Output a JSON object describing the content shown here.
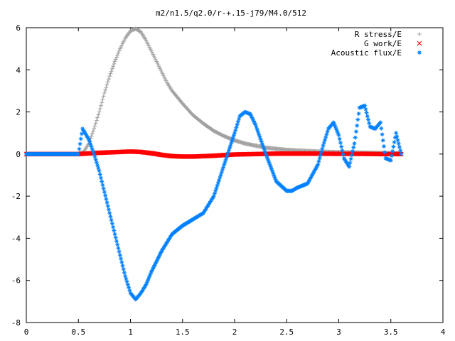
{
  "chart_data": {
    "type": "scatter",
    "title": "m2/n1.5/q2.0/r-+.15-j79/M4.0/512",
    "xlabel": "",
    "ylabel": "",
    "xlim": [
      0,
      4
    ],
    "ylim": [
      -8,
      6
    ],
    "x_ticks": [
      "0",
      "0.5",
      "1",
      "1.5",
      "2",
      "2.5",
      "3",
      "3.5",
      "4"
    ],
    "y_ticks": [
      "-8",
      "-6",
      "-4",
      "-2",
      "0",
      "2",
      "4",
      "6"
    ],
    "grid": false,
    "legend_position": "top-right",
    "series": [
      {
        "name": "R stress/E",
        "marker": "plus",
        "color": "#a0a0a0",
        "x": [
          0.0,
          0.3,
          0.5,
          0.55,
          0.6,
          0.65,
          0.7,
          0.75,
          0.8,
          0.85,
          0.9,
          0.95,
          1.0,
          1.05,
          1.1,
          1.15,
          1.2,
          1.25,
          1.3,
          1.35,
          1.4,
          1.5,
          1.6,
          1.7,
          1.8,
          1.9,
          2.0,
          2.1,
          2.2,
          2.3,
          2.4,
          2.5,
          2.6,
          2.8,
          3.0,
          3.2,
          3.4,
          3.6
        ],
        "y": [
          0.0,
          0.0,
          0.0,
          0.1,
          0.5,
          1.2,
          2.0,
          2.9,
          3.7,
          4.4,
          5.0,
          5.5,
          5.85,
          5.95,
          5.8,
          5.4,
          4.9,
          4.4,
          3.9,
          3.4,
          3.0,
          2.4,
          1.85,
          1.45,
          1.1,
          0.85,
          0.65,
          0.5,
          0.4,
          0.3,
          0.25,
          0.2,
          0.17,
          0.12,
          0.09,
          0.07,
          0.05,
          0.04
        ]
      },
      {
        "name": "G work/E",
        "marker": "cross",
        "color": "#ff0000",
        "x": [
          0.0,
          0.5,
          0.6,
          0.7,
          0.8,
          0.9,
          1.0,
          1.1,
          1.2,
          1.3,
          1.4,
          1.5,
          1.6,
          1.7,
          1.8,
          1.9,
          2.0,
          2.2,
          2.4,
          2.6,
          2.8,
          3.0,
          3.2,
          3.4,
          3.6
        ],
        "y": [
          0.0,
          0.0,
          0.03,
          0.06,
          0.08,
          0.1,
          0.12,
          0.1,
          0.04,
          -0.04,
          -0.1,
          -0.12,
          -0.12,
          -0.1,
          -0.08,
          -0.05,
          -0.02,
          0.0,
          0.02,
          0.02,
          0.02,
          0.01,
          0.01,
          0.0,
          0.0
        ]
      },
      {
        "name": "Acoustic flux/E",
        "marker": "star",
        "color": "#0080ff",
        "x": [
          0.0,
          0.5,
          0.54,
          0.6,
          0.65,
          0.7,
          0.75,
          0.8,
          0.85,
          0.9,
          0.95,
          1.0,
          1.05,
          1.1,
          1.15,
          1.2,
          1.3,
          1.4,
          1.5,
          1.6,
          1.7,
          1.8,
          1.9,
          2.0,
          2.05,
          2.1,
          2.15,
          2.2,
          2.3,
          2.4,
          2.5,
          2.55,
          2.6,
          2.7,
          2.8,
          2.85,
          2.9,
          2.95,
          3.0,
          3.05,
          3.1,
          3.15,
          3.2,
          3.25,
          3.3,
          3.35,
          3.4,
          3.45,
          3.5,
          3.55,
          3.6
        ],
        "y": [
          0.0,
          0.0,
          1.2,
          0.7,
          0.0,
          -0.8,
          -1.8,
          -2.8,
          -3.8,
          -4.8,
          -5.8,
          -6.6,
          -6.9,
          -6.6,
          -6.2,
          -5.6,
          -4.6,
          -3.8,
          -3.4,
          -3.1,
          -2.8,
          -2.0,
          -0.5,
          1.0,
          1.8,
          2.0,
          1.9,
          1.4,
          0.0,
          -1.3,
          -1.75,
          -1.75,
          -1.6,
          -1.4,
          -0.5,
          0.4,
          1.2,
          1.5,
          0.9,
          -0.2,
          -0.6,
          0.5,
          2.2,
          2.3,
          1.3,
          1.2,
          1.5,
          -0.2,
          -0.3,
          1.0,
          0.0
        ]
      }
    ]
  }
}
